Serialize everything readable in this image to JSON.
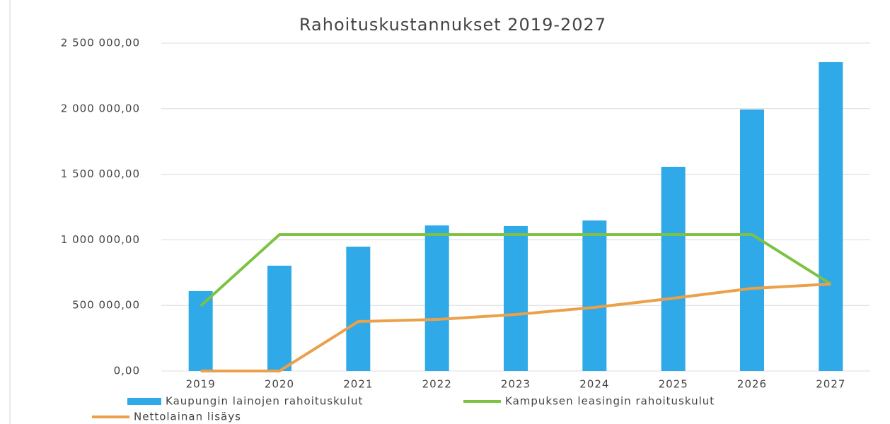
{
  "chart_data": {
    "type": "bar",
    "title": "Rahoituskustannukset 2019-2027",
    "categories": [
      "2019",
      "2020",
      "2021",
      "2022",
      "2023",
      "2024",
      "2025",
      "2026",
      "2027"
    ],
    "series": [
      {
        "name": "Kaupungin lainojen rahoituskulut",
        "type": "bar",
        "color": "#2fa9e8",
        "values": [
          609000,
          803000,
          948000,
          1110000,
          1105000,
          1148000,
          1557000,
          1994000,
          2355000
        ]
      },
      {
        "name": "Kampuksen leasingin rahoituskulut",
        "type": "line",
        "color": "#7dc242",
        "values": [
          496000,
          1040000,
          1040000,
          1040000,
          1040000,
          1040000,
          1040000,
          1040000,
          663000
        ]
      },
      {
        "name": "Nettolainan lisäys",
        "type": "line",
        "color": "#eba04a",
        "values": [
          0,
          0,
          377000,
          393000,
          431000,
          485000,
          555000,
          630000,
          663000
        ]
      }
    ],
    "ylim": [
      0,
      2500000
    ],
    "yticks": [
      {
        "value": 0,
        "label": "0,00"
      },
      {
        "value": 500000,
        "label": "500 000,00"
      },
      {
        "value": 1000000,
        "label": "1 000 000,00"
      },
      {
        "value": 1500000,
        "label": "1 500 000,00"
      },
      {
        "value": 2000000,
        "label": "2 000 000,00"
      },
      {
        "value": 2500000,
        "label": "2 500 000,00"
      }
    ],
    "grid": true,
    "legend": "bottom"
  }
}
